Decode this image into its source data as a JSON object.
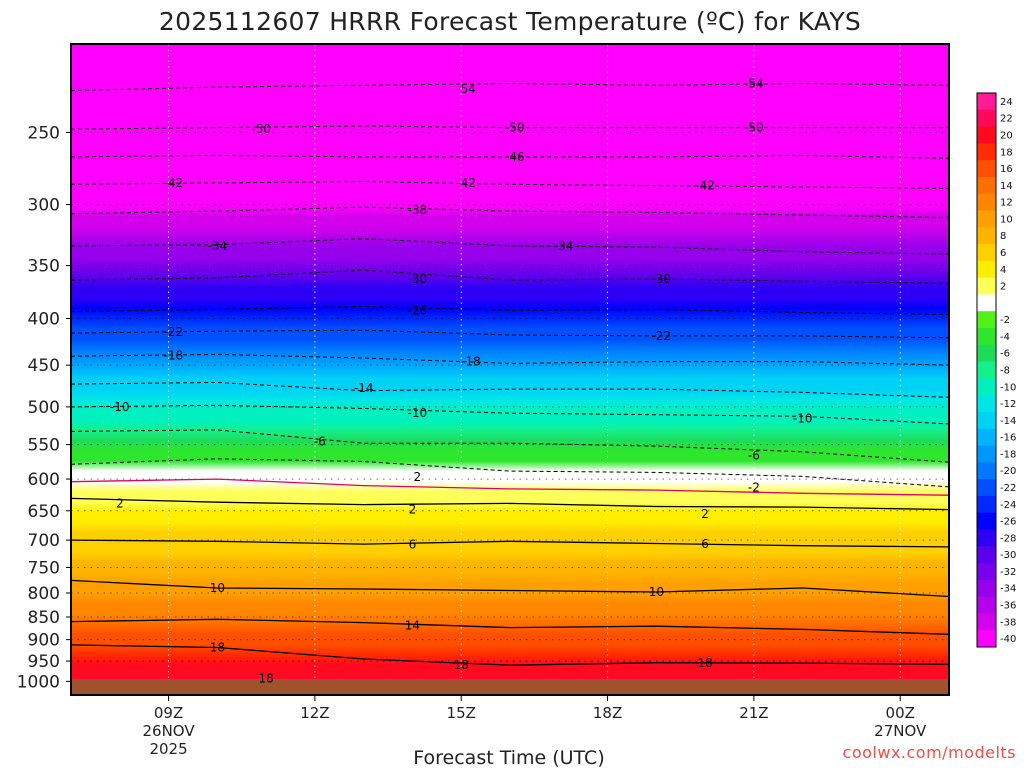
{
  "chart": {
    "title": "2025112607 HRRR Forecast Temperature (ºC) for KAYS",
    "xlabel": "Forecast Time (UTC)",
    "credit": "coolwx.com/modelts",
    "surface_color": "#a0522d",
    "pressure_ticks": [
      "250",
      "300",
      "350",
      "400",
      "450",
      "500",
      "550",
      "600",
      "650",
      "700",
      "750",
      "800",
      "850",
      "900",
      "950",
      "1000"
    ],
    "time_ticks": [
      {
        "label": "09Z",
        "sub1": "26NOV",
        "sub2": "2025"
      },
      {
        "label": "12Z",
        "sub1": "",
        "sub2": ""
      },
      {
        "label": "15Z",
        "sub1": "",
        "sub2": ""
      },
      {
        "label": "18Z",
        "sub1": "",
        "sub2": ""
      },
      {
        "label": "21Z",
        "sub1": "",
        "sub2": ""
      },
      {
        "label": "00Z",
        "sub1": "27NOV",
        "sub2": ""
      }
    ]
  },
  "chart_data": {
    "type": "heatmap",
    "title": "2025112607 HRRR Forecast Temperature (ºC) for KAYS",
    "xlabel": "Forecast Time (UTC)",
    "ylabel": "",
    "x_range_hours_utc": [
      7,
      25
    ],
    "y_axis_pressure_hPa": {
      "top": 200,
      "bottom": 1035,
      "scale": "log"
    },
    "grid": true,
    "legend": "colorbar on right",
    "colorbar": [
      {
        "label": "24",
        "color": "#ff1c96"
      },
      {
        "label": "22",
        "color": "#ff0a5a"
      },
      {
        "label": "20",
        "color": "#ff0a1e"
      },
      {
        "label": "18",
        "color": "#ff2d00"
      },
      {
        "label": "16",
        "color": "#ff5000"
      },
      {
        "label": "14",
        "color": "#ff6e00"
      },
      {
        "label": "12",
        "color": "#ff8700"
      },
      {
        "label": "10",
        "color": "#ffa000"
      },
      {
        "label": "8",
        "color": "#ffb400"
      },
      {
        "label": "6",
        "color": "#ffd000"
      },
      {
        "label": "4",
        "color": "#ffee00"
      },
      {
        "label": "2",
        "color": "#ffff5a"
      },
      {
        "label": "",
        "color": "#ffffff"
      },
      {
        "label": "-2",
        "color": "#50f018"
      },
      {
        "label": "-4",
        "color": "#2de62d"
      },
      {
        "label": "-6",
        "color": "#1edc5a"
      },
      {
        "label": "-8",
        "color": "#14f08c"
      },
      {
        "label": "-10",
        "color": "#00f0bf"
      },
      {
        "label": "-12",
        "color": "#00e6e6"
      },
      {
        "label": "-14",
        "color": "#00d2f5"
      },
      {
        "label": "-16",
        "color": "#00b4ff"
      },
      {
        "label": "-18",
        "color": "#0096ff"
      },
      {
        "label": "-20",
        "color": "#0078ff"
      },
      {
        "label": "-22",
        "color": "#0050ff"
      },
      {
        "label": "-24",
        "color": "#0028ff"
      },
      {
        "label": "-26",
        "color": "#0000ff"
      },
      {
        "label": "-28",
        "color": "#2d00f5"
      },
      {
        "label": "-30",
        "color": "#5a00eb"
      },
      {
        "label": "-32",
        "color": "#7800eb"
      },
      {
        "label": "-34",
        "color": "#9600eb"
      },
      {
        "label": "-36",
        "color": "#b400eb"
      },
      {
        "label": "-38",
        "color": "#d200eb"
      },
      {
        "label": "-40",
        "color": "#ff00ff"
      }
    ],
    "isotherms": [
      {
        "value": -54,
        "p": [
          225,
          223,
          222,
          221,
          222,
          221,
          222
        ]
      },
      {
        "value": -50,
        "p": [
          248,
          247,
          246,
          247,
          247,
          247,
          247
        ]
      },
      {
        "value": -46,
        "p": [
          266,
          265,
          266,
          266,
          266,
          265,
          267
        ]
      },
      {
        "value": -42,
        "p": [
          285,
          284,
          283,
          285,
          286,
          287,
          288
        ]
      },
      {
        "value": -38,
        "p": [
          307,
          305,
          302,
          305,
          306,
          308,
          310
        ]
      },
      {
        "value": -34,
        "p": [
          333,
          332,
          327,
          333,
          334,
          338,
          340
        ]
      },
      {
        "value": -30,
        "p": [
          363,
          361,
          354,
          363,
          362,
          364,
          366
        ]
      },
      {
        "value": -26,
        "p": [
          393,
          391,
          388,
          392,
          391,
          394,
          396
        ]
      },
      {
        "value": -22,
        "p": [
          415,
          413,
          412,
          417,
          418,
          418,
          420
        ]
      },
      {
        "value": -18,
        "p": [
          440,
          438,
          442,
          448,
          446,
          446,
          450
        ]
      },
      {
        "value": -14,
        "p": [
          472,
          470,
          480,
          478,
          478,
          482,
          488
        ]
      },
      {
        "value": -10,
        "p": [
          500,
          498,
          502,
          508,
          510,
          512,
          522
        ]
      },
      {
        "value": -6,
        "p": [
          532,
          530,
          548,
          548,
          552,
          560,
          575
        ]
      },
      {
        "value": -2,
        "p": [
          578,
          570,
          574,
          588,
          590,
          596,
          612
        ]
      },
      {
        "value": 2,
        "p": [
          604,
          600,
          610,
          615,
          617,
          622,
          625
        ]
      },
      {
        "value": 2,
        "p": [
          630,
          636,
          640,
          638,
          643,
          644,
          648
        ]
      },
      {
        "value": 6,
        "p": [
          700,
          702,
          707,
          702,
          706,
          710,
          712
        ]
      },
      {
        "value": 10,
        "p": [
          775,
          790,
          792,
          795,
          798,
          790,
          807
        ]
      },
      {
        "value": 14,
        "p": [
          860,
          855,
          862,
          873,
          870,
          877,
          888
        ]
      },
      {
        "value": 18,
        "p": [
          912,
          918,
          945,
          960,
          954,
          955,
          958
        ]
      }
    ],
    "contour_labels": [
      {
        "text": "-54",
        "t": 15.1,
        "p": 224
      },
      {
        "text": "-54",
        "t": 21.0,
        "p": 221
      },
      {
        "text": "-50",
        "t": 10.9,
        "p": 248
      },
      {
        "text": "-50",
        "t": 16.1,
        "p": 247
      },
      {
        "text": "-50",
        "t": 21.0,
        "p": 247
      },
      {
        "text": "-46",
        "t": 16.1,
        "p": 266
      },
      {
        "text": "-42",
        "t": 9.1,
        "p": 284
      },
      {
        "text": "-42",
        "t": 15.1,
        "p": 284
      },
      {
        "text": "-42",
        "t": 20.0,
        "p": 286
      },
      {
        "text": "-38",
        "t": 14.1,
        "p": 304
      },
      {
        "text": "-34",
        "t": 10.0,
        "p": 333
      },
      {
        "text": "-34",
        "t": 17.1,
        "p": 333
      },
      {
        "text": "-30",
        "t": 14.1,
        "p": 362
      },
      {
        "text": "-30",
        "t": 19.1,
        "p": 362
      },
      {
        "text": "-26",
        "t": 14.1,
        "p": 392
      },
      {
        "text": "-22",
        "t": 9.1,
        "p": 414
      },
      {
        "text": "-22",
        "t": 19.1,
        "p": 418
      },
      {
        "text": "-18",
        "t": 9.1,
        "p": 439
      },
      {
        "text": "-18",
        "t": 15.2,
        "p": 446
      },
      {
        "text": "-14",
        "t": 13.0,
        "p": 477
      },
      {
        "text": "-10",
        "t": 8.0,
        "p": 500
      },
      {
        "text": "-10",
        "t": 14.1,
        "p": 508
      },
      {
        "text": "-10",
        "t": 22.0,
        "p": 515
      },
      {
        "text": "-6",
        "t": 12.1,
        "p": 546
      },
      {
        "text": "-6",
        "t": 21.0,
        "p": 565
      },
      {
        "text": "2",
        "t": 14.1,
        "p": 597
      },
      {
        "text": "-2",
        "t": 21.0,
        "p": 613
      },
      {
        "text": "2",
        "t": 8.0,
        "p": 638
      },
      {
        "text": "2",
        "t": 14.0,
        "p": 648
      },
      {
        "text": "2",
        "t": 20.0,
        "p": 655
      },
      {
        "text": "6",
        "t": 14.0,
        "p": 708
      },
      {
        "text": "6",
        "t": 20.0,
        "p": 707
      },
      {
        "text": "10",
        "t": 10.0,
        "p": 790
      },
      {
        "text": "10",
        "t": 19.0,
        "p": 798
      },
      {
        "text": "14",
        "t": 14.0,
        "p": 868
      },
      {
        "text": "18",
        "t": 10.0,
        "p": 918
      },
      {
        "text": "18",
        "t": 15.0,
        "p": 959
      },
      {
        "text": "18",
        "t": 20.0,
        "p": 955
      },
      {
        "text": "18",
        "t": 11.0,
        "p": 993
      }
    ]
  }
}
